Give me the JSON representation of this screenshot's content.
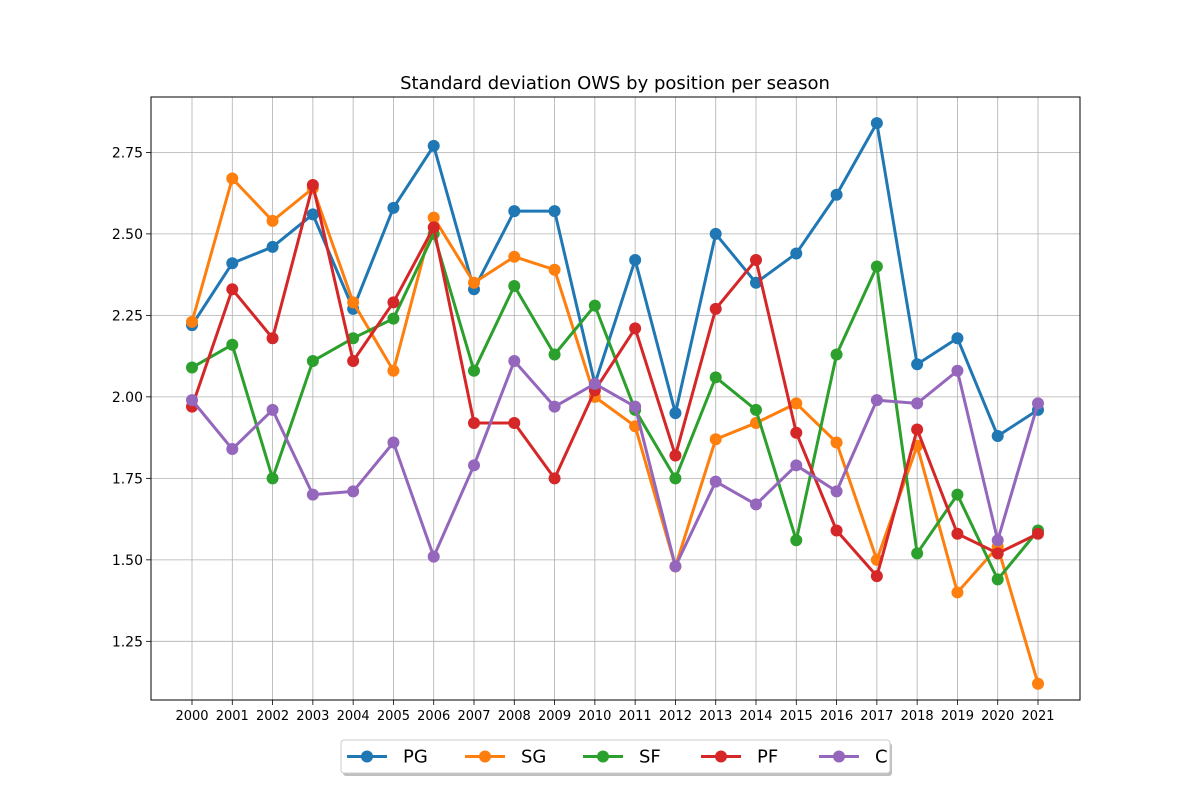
{
  "chart_data": {
    "type": "line",
    "title": "Standard deviation OWS by position per season",
    "xlabel": "",
    "ylabel": "",
    "categories": [
      "2000",
      "2001",
      "2002",
      "2003",
      "2004",
      "2005",
      "2006",
      "2007",
      "2008",
      "2009",
      "2010",
      "2011",
      "2012",
      "2013",
      "2014",
      "2015",
      "2016",
      "2017",
      "2018",
      "2019",
      "2020",
      "2021"
    ],
    "ylim": [
      1.07,
      2.92
    ],
    "yticks": [
      "1.25",
      "1.50",
      "1.75",
      "2.00",
      "2.25",
      "2.50",
      "2.75"
    ],
    "grid": true,
    "legend_position": "bottom-center",
    "series": [
      {
        "name": "PG",
        "color": "#1f77b4",
        "values": [
          2.22,
          2.41,
          2.46,
          2.56,
          2.27,
          2.58,
          2.77,
          2.33,
          2.57,
          2.57,
          2.04,
          2.42,
          1.95,
          2.5,
          2.35,
          2.44,
          2.62,
          2.84,
          2.1,
          2.18,
          1.88,
          1.96
        ]
      },
      {
        "name": "SG",
        "color": "#ff7f0e",
        "values": [
          2.23,
          2.67,
          2.54,
          2.64,
          2.29,
          2.08,
          2.55,
          2.35,
          2.43,
          2.39,
          2.0,
          1.91,
          1.48,
          1.87,
          1.92,
          1.98,
          1.86,
          1.5,
          1.85,
          1.4,
          1.54,
          1.12
        ]
      },
      {
        "name": "SF",
        "color": "#2ca02c",
        "values": [
          2.09,
          2.16,
          1.75,
          2.11,
          2.18,
          2.24,
          2.5,
          2.08,
          2.34,
          2.13,
          2.28,
          1.96,
          1.75,
          2.06,
          1.96,
          1.56,
          2.13,
          2.4,
          1.52,
          1.7,
          1.44,
          1.59
        ]
      },
      {
        "name": "PF",
        "color": "#d62728",
        "values": [
          1.97,
          2.33,
          2.18,
          2.65,
          2.11,
          2.29,
          2.52,
          1.92,
          1.92,
          1.75,
          2.02,
          2.21,
          1.82,
          2.27,
          2.42,
          1.89,
          1.59,
          1.45,
          1.9,
          1.58,
          1.52,
          1.58
        ]
      },
      {
        "name": "C",
        "color": "#9467bd",
        "values": [
          1.99,
          1.84,
          1.96,
          1.7,
          1.71,
          1.86,
          1.51,
          1.79,
          2.11,
          1.97,
          2.04,
          1.97,
          1.48,
          1.74,
          1.67,
          1.79,
          1.71,
          1.99,
          1.98,
          2.08,
          1.56,
          1.98
        ]
      }
    ]
  }
}
